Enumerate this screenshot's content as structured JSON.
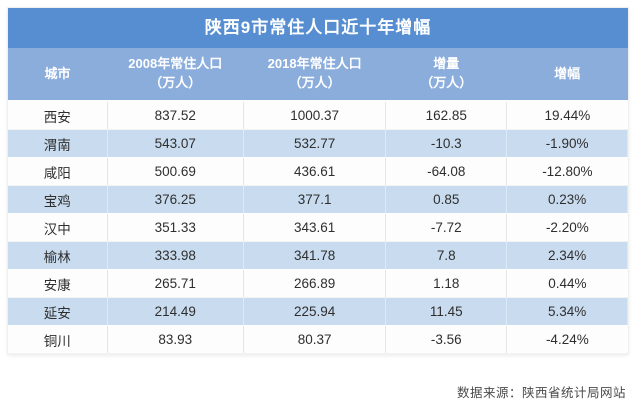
{
  "title": "陕西9市常住人口近十年增幅",
  "source_note": "数据来源：陕西省统计局网站",
  "colors": {
    "title_bar": "#568ed1",
    "header_row": "#8baddc",
    "alt_row": "#c9dcef",
    "row": "#fdfdfd",
    "title_text": "#ffffff",
    "body_text": "#2e2e2e",
    "source_text": "#4a4a4a"
  },
  "chart_data": {
    "type": "table",
    "title": "陕西9市常住人口近十年增幅",
    "columns": [
      {
        "label": "城市",
        "lines": [
          "城市"
        ]
      },
      {
        "label": "2008年常住人口（万人）",
        "lines": [
          "2008年常住人口",
          "（万人）"
        ]
      },
      {
        "label": "2018年常住人口（万人）",
        "lines": [
          "2018年常住人口",
          "（万人）"
        ]
      },
      {
        "label": "增量（万人）",
        "lines": [
          "增量",
          "（万人）"
        ]
      },
      {
        "label": "增幅",
        "lines": [
          "增幅"
        ]
      }
    ],
    "rows": [
      [
        "西安",
        "837.52",
        "1000.37",
        "162.85",
        "19.44%"
      ],
      [
        "渭南",
        "543.07",
        "532.77",
        "-10.3",
        "-1.90%"
      ],
      [
        "咸阳",
        "500.69",
        "436.61",
        "-64.08",
        "-12.80%"
      ],
      [
        "宝鸡",
        "376.25",
        "377.1",
        "0.85",
        "0.23%"
      ],
      [
        "汉中",
        "351.33",
        "343.61",
        "-7.72",
        "-2.20%"
      ],
      [
        "榆林",
        "333.98",
        "341.78",
        "7.8",
        "2.34%"
      ],
      [
        "安康",
        "265.71",
        "266.89",
        "1.18",
        "0.44%"
      ],
      [
        "延安",
        "214.49",
        "225.94",
        "11.45",
        "5.34%"
      ],
      [
        "铜川",
        "83.93",
        "80.37",
        "-3.56",
        "-4.24%"
      ]
    ],
    "source_note": "数据来源：陕西省统计局网站"
  }
}
